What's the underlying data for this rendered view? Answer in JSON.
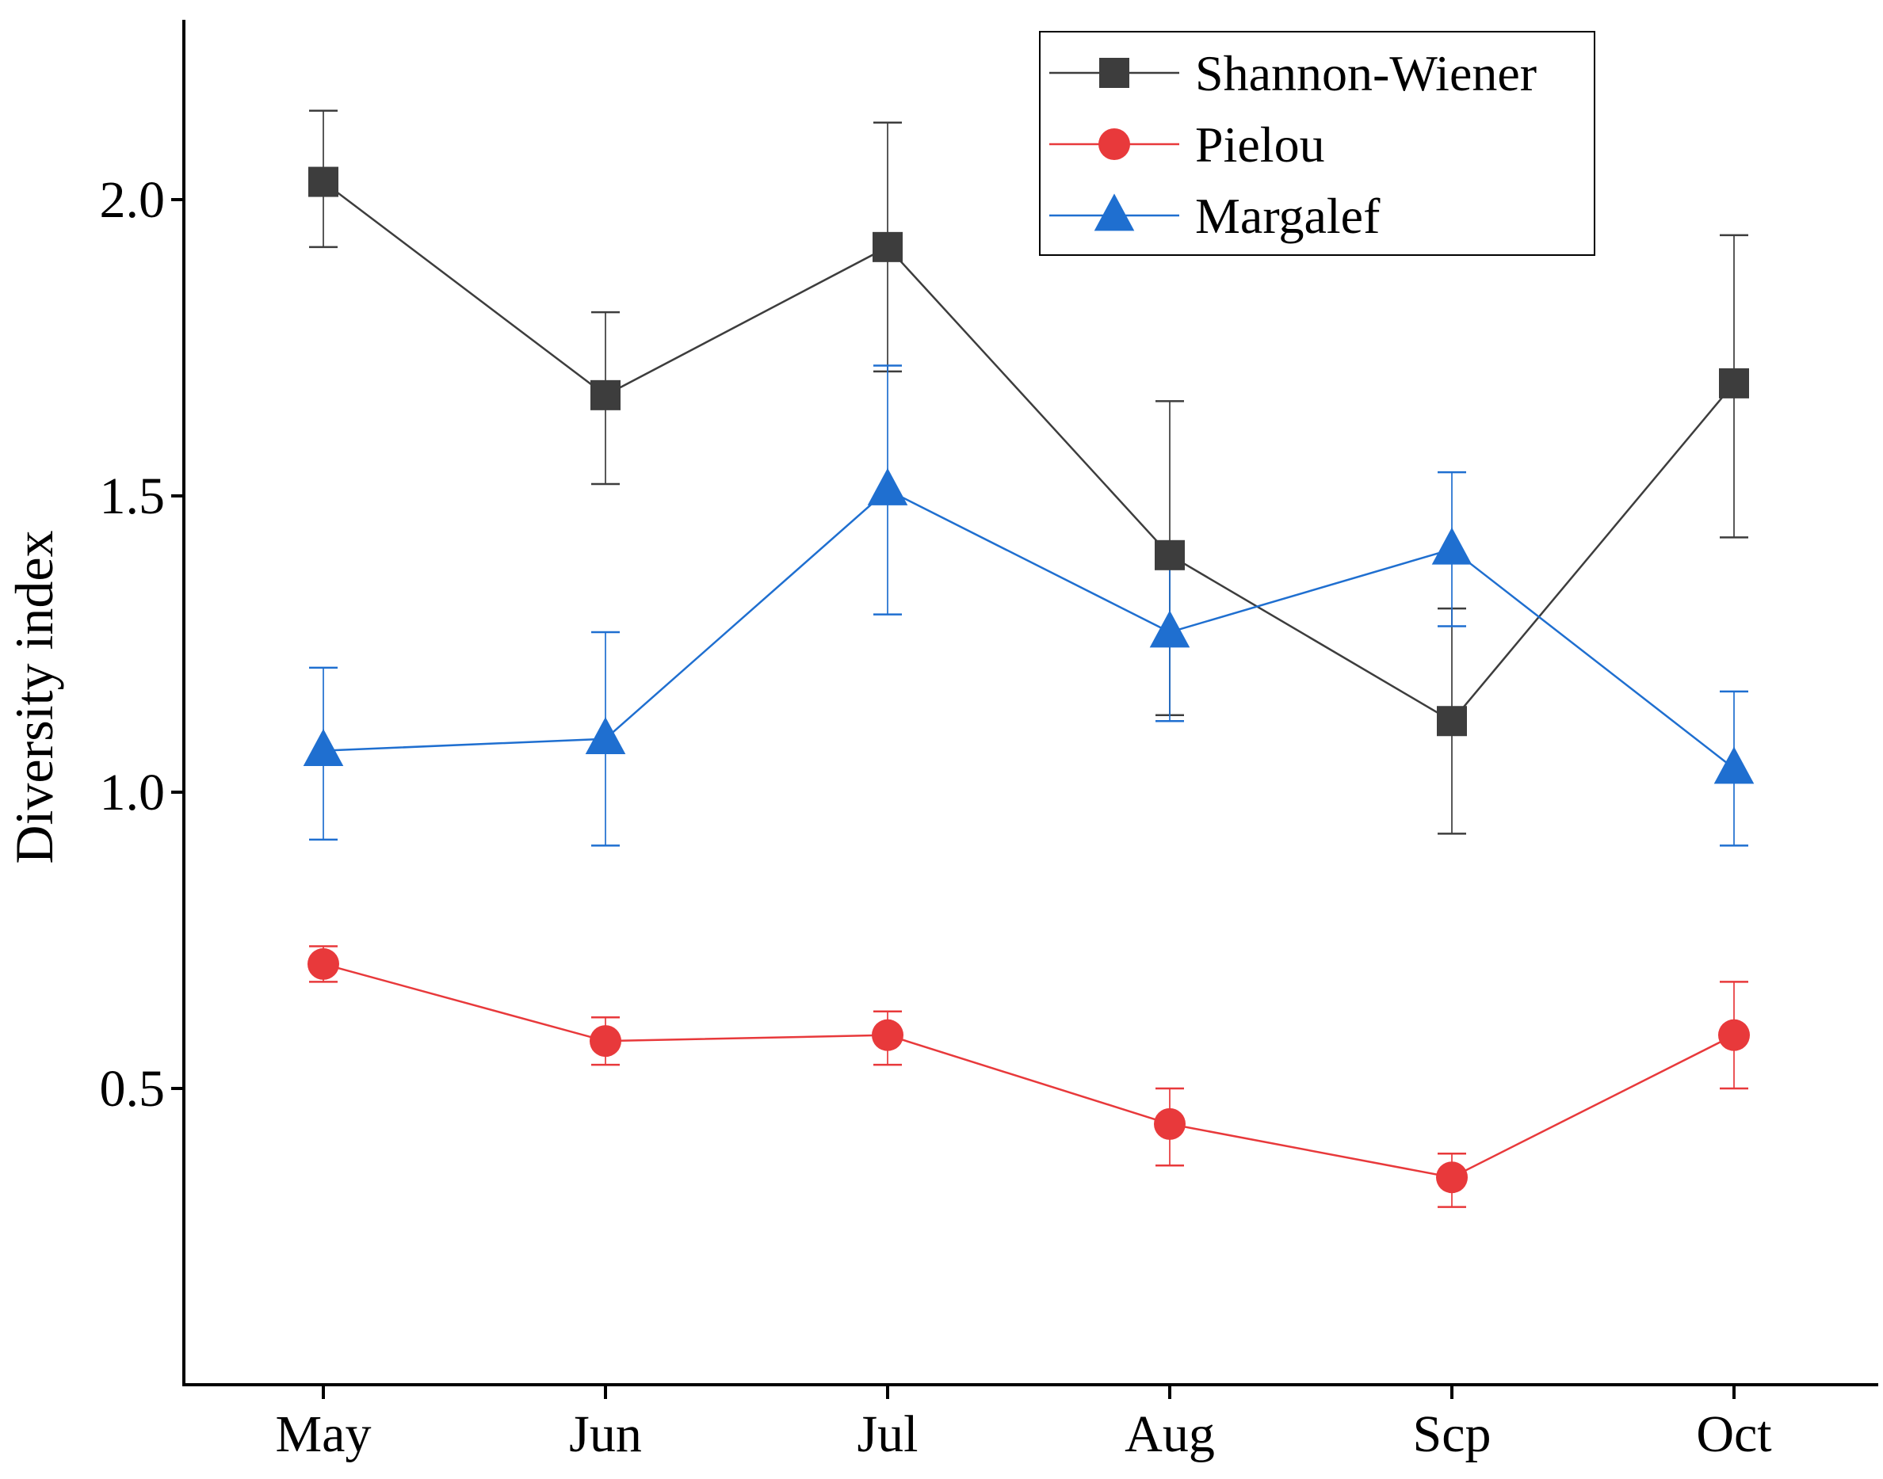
{
  "chart_data": {
    "type": "line",
    "title": "",
    "xlabel": "",
    "ylabel": "Diversity index",
    "categories": [
      "May",
      "Jun",
      "Jul",
      "Aug",
      "Scp",
      "Oct"
    ],
    "ylim": [
      0,
      2.3
    ],
    "yticks": [
      0.5,
      1.0,
      1.5,
      2.0
    ],
    "ytick_labels": [
      "0.5",
      "1.0",
      "1.5",
      "2.0"
    ],
    "grid": false,
    "legend": "top-right",
    "series": [
      {
        "name": "Shannon-Wiener",
        "color": "#3d3d3d",
        "marker": "square",
        "values": [
          2.03,
          1.67,
          1.92,
          1.4,
          1.12,
          1.69
        ],
        "err_low": [
          1.92,
          1.52,
          1.71,
          1.13,
          0.93,
          1.43
        ],
        "err_high": [
          2.15,
          1.81,
          2.13,
          1.66,
          1.31,
          1.94
        ]
      },
      {
        "name": "Pielou",
        "color": "#e8393b",
        "marker": "circle",
        "values": [
          0.71,
          0.58,
          0.59,
          0.44,
          0.35,
          0.59
        ],
        "err_low": [
          0.68,
          0.54,
          0.54,
          0.37,
          0.3,
          0.5
        ],
        "err_high": [
          0.74,
          0.62,
          0.63,
          0.5,
          0.39,
          0.68
        ]
      },
      {
        "name": "Margalef",
        "color": "#1f6fd0",
        "marker": "triangle",
        "values": [
          1.07,
          1.09,
          1.51,
          1.27,
          1.41,
          1.04
        ],
        "err_low": [
          0.92,
          0.91,
          1.3,
          1.12,
          1.28,
          0.91
        ],
        "err_high": [
          1.21,
          1.27,
          1.72,
          1.41,
          1.54,
          1.17
        ]
      }
    ]
  }
}
